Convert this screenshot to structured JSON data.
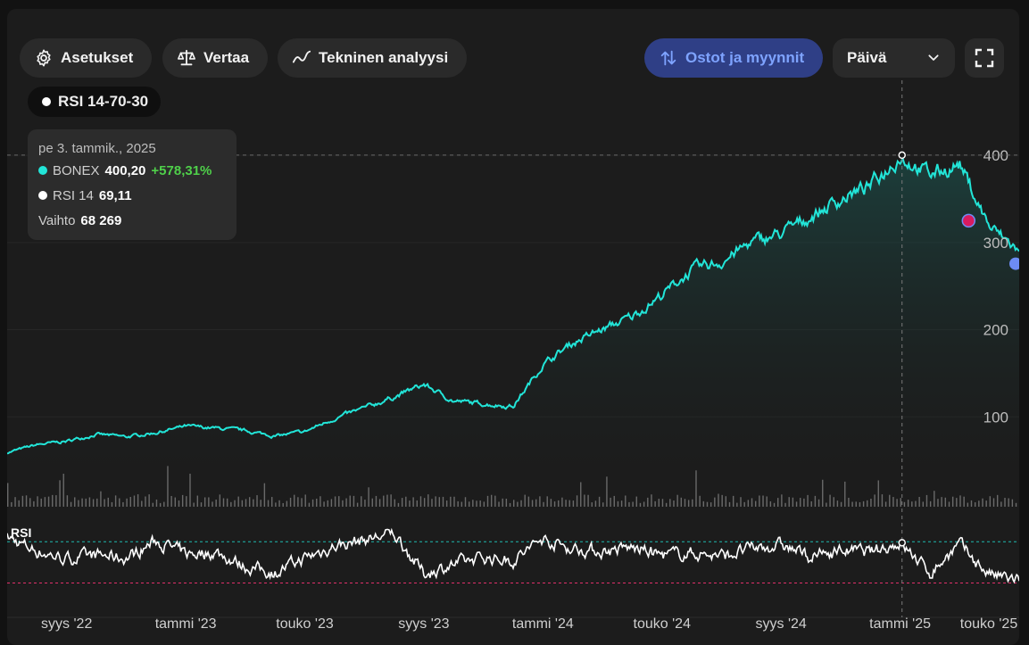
{
  "toolbar": {
    "settings_label": "Asetukset",
    "compare_label": "Vertaa",
    "technical_label": "Tekninen analyysi",
    "trades_label": "Ostot ja myynnit",
    "interval_value": "Päivä"
  },
  "indicator_chip": {
    "label": "RSI 14-70-30"
  },
  "tooltip": {
    "date": "pe 3. tammik., 2025",
    "series_name": "BONEX",
    "series_value": "400,20",
    "series_change": "+578,31%",
    "rsi_name": "RSI 14",
    "rsi_value": "69,11",
    "volume_name": "Vaihto",
    "volume_value": "68 269"
  },
  "colors": {
    "price": "#22e5d8",
    "rsi": "#ffffff",
    "rsi_upper": "#1fb9b0",
    "rsi_lower": "#e0306a",
    "sell_marker": "#d81b60",
    "last_marker": "#6d8cf5",
    "volume": "#6b6b6b"
  },
  "chart_data": {
    "type": "line",
    "title": "",
    "series": [
      {
        "name": "BONEX",
        "x": [
          "2022-07",
          "2022-08",
          "2022-09",
          "2022-10",
          "2022-11",
          "2022-12",
          "2023-01",
          "2023-02",
          "2023-03",
          "2023-04",
          "2023-05",
          "2023-06",
          "2023-07",
          "2023-08",
          "2023-09",
          "2023-10",
          "2023-11",
          "2023-12",
          "2024-01",
          "2024-02",
          "2024-03",
          "2024-04",
          "2024-05",
          "2024-06",
          "2024-07",
          "2024-08",
          "2024-09",
          "2024-10",
          "2024-11",
          "2024-12",
          "2025-01",
          "2025-02",
          "2025-03",
          "2025-04",
          "2025-05"
        ],
        "values": [
          59,
          68,
          72,
          80,
          77,
          82,
          89,
          87,
          84,
          78,
          83,
          98,
          110,
          123,
          137,
          118,
          115,
          112,
          160,
          185,
          200,
          215,
          240,
          268,
          278,
          300,
          310,
          330,
          350,
          365,
          400,
          378,
          390,
          318,
          290
        ]
      }
    ],
    "rsi": {
      "name": "RSI",
      "levels": [
        70,
        30
      ],
      "values": [
        74,
        61,
        53,
        57,
        54,
        71,
        58,
        60,
        46,
        40,
        54,
        66,
        72,
        78,
        39,
        48,
        55,
        52,
        73,
        63,
        61,
        64,
        57,
        59,
        56,
        63,
        67,
        55,
        62,
        60,
        69,
        40,
        67,
        38,
        32
      ]
    },
    "y_ticks": [
      100,
      200,
      300,
      400
    ],
    "x_ticks": [
      "syys '22",
      "tammi '23",
      "touko '23",
      "syys '23",
      "tammi '24",
      "touko '24",
      "syys '24",
      "tammi '25",
      "touko '25"
    ],
    "ylim": [
      0,
      440
    ],
    "grid": true,
    "crosshair_date": "2025-01-03"
  }
}
